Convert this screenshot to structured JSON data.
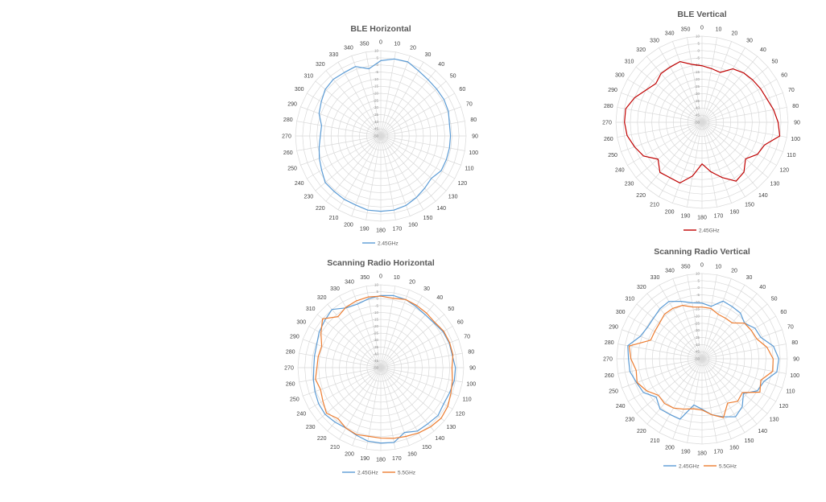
{
  "chart_data": [
    {
      "type": "radar",
      "title": "BLE Horizontal",
      "categories": [
        "0",
        "10",
        "20",
        "30",
        "40",
        "50",
        "60",
        "70",
        "80",
        "90",
        "100",
        "110",
        "120",
        "130",
        "140",
        "150",
        "160",
        "170",
        "180",
        "190",
        "200",
        "210",
        "220",
        "230",
        "240",
        "250",
        "260",
        "270",
        "280",
        "290",
        "300",
        "310",
        "320",
        "330",
        "340",
        "350"
      ],
      "rlim": [
        -50,
        10
      ],
      "rticks": [
        10,
        5,
        0,
        -5,
        -10,
        -15,
        -20,
        -25,
        -30,
        -35,
        -40,
        -45,
        -50
      ],
      "grid": true,
      "legend": "bottom",
      "series": [
        {
          "name": "2.45GHz",
          "color": "#5b9bd5",
          "values": [
            3,
            5,
            5.5,
            3,
            1.7,
            1.3,
            1.3,
            0.6,
            -1,
            -1,
            -1,
            -1,
            -1,
            -3.6,
            -2,
            0,
            2,
            3,
            3,
            3,
            1.7,
            1.5,
            1,
            1,
            -2,
            -4,
            -6,
            -7.5,
            -7.7,
            -3.8,
            -1.7,
            1,
            2,
            1.5,
            2,
            -2
          ]
        }
      ]
    },
    {
      "type": "radar",
      "title": "BLE Vertical",
      "categories": [
        "0",
        "10",
        "20",
        "30",
        "40",
        "50",
        "60",
        "70",
        "80",
        "90",
        "100",
        "110",
        "120",
        "130",
        "140",
        "150",
        "160",
        "170",
        "180",
        "190",
        "200",
        "210",
        "220",
        "230",
        "240",
        "250",
        "260",
        "270",
        "280",
        "290",
        "300",
        "310",
        "320",
        "330",
        "340",
        "350"
      ],
      "rlim": [
        -50,
        10
      ],
      "rticks": [
        10,
        5,
        0,
        -5,
        -10,
        -15,
        -20,
        -25,
        -30,
        -35,
        -40,
        -45,
        -50
      ],
      "grid": true,
      "legend": "bottom",
      "series": [
        {
          "name": "2.45GHz",
          "color": "#c00000",
          "values": [
            -10.6,
            -12,
            -13,
            -7,
            -5,
            -4,
            -3,
            -2,
            0.6,
            3,
            5,
            -3.7,
            -5.4,
            -10.4,
            -4.6,
            -2.6,
            -9,
            -15,
            -21,
            -12,
            -5,
            -5.4,
            -4.4,
            -10,
            -3,
            0,
            3,
            4,
            4,
            0,
            -5,
            -8,
            -5.6,
            -5.6,
            -5,
            -9
          ]
        }
      ]
    },
    {
      "type": "radar",
      "title": "Scanning Radio Horizontal",
      "categories": [
        "0",
        "10",
        "20",
        "30",
        "40",
        "50",
        "60",
        "70",
        "80",
        "90",
        "100",
        "110",
        "120",
        "130",
        "140",
        "150",
        "160",
        "170",
        "180",
        "190",
        "200",
        "210",
        "220",
        "230",
        "240",
        "250",
        "260",
        "270",
        "280",
        "290",
        "300",
        "310",
        "320",
        "330",
        "340",
        "350"
      ],
      "rlim": [
        -50,
        10
      ],
      "rticks": [
        10,
        5,
        0,
        -5,
        -10,
        -15,
        -20,
        -25,
        -30,
        -35,
        -40,
        -45,
        -50
      ],
      "grid": true,
      "legend": "bottom",
      "series": [
        {
          "name": "2.45GHz",
          "color": "#5b9bd5",
          "values": [
            2.2,
            3,
            2.5,
            1,
            0,
            0.3,
            2,
            2.6,
            2.5,
            4,
            4,
            3,
            2.5,
            4,
            3,
            3,
            0,
            5,
            4.6,
            4,
            2,
            0.5,
            1.5,
            2.6,
            2,
            0.7,
            -0.5,
            -1.5,
            -1.3,
            -0.7,
            1.5,
            3,
            5,
            0,
            -1,
            0.7
          ]
        },
        {
          "name": "5.5GHz",
          "color": "#ed7d31",
          "values": [
            1.8,
            1,
            2.5,
            2,
            1.5,
            1,
            2.6,
            3,
            3,
            1.5,
            2.6,
            4,
            6,
            7,
            6,
            4.6,
            3,
            2,
            1,
            0.5,
            1.5,
            0.5,
            -1.8,
            1.3,
            -1.6,
            -3.6,
            -2,
            -3.8,
            -4,
            -4.5,
            0,
            5,
            -1.8,
            0.5,
            1.5,
            2
          ]
        }
      ]
    },
    {
      "type": "radar",
      "title": "Scanning Radio Vertical",
      "categories": [
        "0",
        "10",
        "20",
        "30",
        "40",
        "50",
        "60",
        "70",
        "80",
        "90",
        "100",
        "110",
        "120",
        "130",
        "140",
        "150",
        "160",
        "170",
        "180",
        "190",
        "200",
        "210",
        "220",
        "230",
        "240",
        "250",
        "260",
        "270",
        "280",
        "290",
        "300",
        "310",
        "320",
        "330",
        "340",
        "350"
      ],
      "rlim": [
        -50,
        10
      ],
      "rticks": [
        10,
        5,
        0,
        -5,
        -10,
        -15,
        -20,
        -25,
        -30,
        -35,
        -40,
        -45,
        -50
      ],
      "grid": true,
      "legend": "bottom",
      "series": [
        {
          "name": "2.45GHz",
          "color": "#5b9bd5",
          "values": [
            -10.8,
            -12.5,
            -6.8,
            -7.6,
            -8,
            -11,
            -7,
            -6,
            1,
            4,
            3.4,
            -3.6,
            -5,
            -12,
            -6,
            -2.9,
            -6.6,
            -10,
            -14.6,
            -17,
            -4.8,
            -4.8,
            -4,
            -8,
            -2.5,
            -1,
            1.5,
            1.7,
            3,
            -3.8,
            -5.7,
            -5.5,
            -4,
            -3.4,
            -7,
            -10
          ]
        },
        {
          "name": "5.5GHz",
          "color": "#ed7d31",
          "values": [
            -13.6,
            -14,
            -16.7,
            -17,
            -17,
            -11,
            -10,
            -9,
            -3.6,
            0,
            0.5,
            -6,
            -3,
            -13,
            -11,
            -14,
            -6,
            -10,
            -14,
            -14.3,
            -12.3,
            -10,
            -9,
            -10,
            -5,
            -1.4,
            -3,
            0,
            2,
            -11.6,
            -11.6,
            -11,
            -9,
            -9,
            -10,
            -13
          ]
        }
      ]
    }
  ]
}
